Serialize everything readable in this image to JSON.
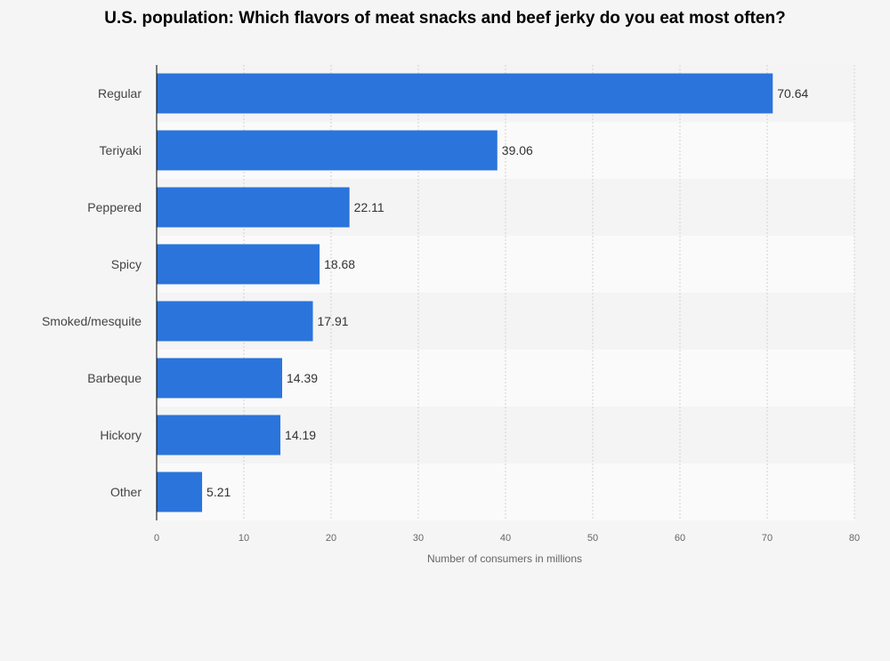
{
  "chart_data": {
    "type": "bar",
    "orientation": "horizontal",
    "title": "U.S. population: Which flavors of meat snacks and beef jerky do you eat most often?",
    "xlabel": "Number of consumers in millions",
    "ylabel": "",
    "categories": [
      "Regular",
      "Teriyaki",
      "Peppered",
      "Spicy",
      "Smoked/mesquite",
      "Barbeque",
      "Hickory",
      "Other"
    ],
    "values": [
      70.64,
      39.06,
      22.11,
      18.68,
      17.91,
      14.39,
      14.19,
      5.21
    ],
    "value_labels": [
      "70.64",
      "39.06",
      "22.11",
      "18.68",
      "17.91",
      "14.39",
      "14.19",
      "5.21"
    ],
    "xlim": [
      0,
      80
    ],
    "x_ticks": [
      "0",
      "10",
      "20",
      "30",
      "40",
      "50",
      "60",
      "70",
      "80"
    ],
    "grid": true,
    "bar_color": "#2a74dc",
    "band_colors": [
      "#f4f4f4",
      "#fafafa"
    ]
  }
}
